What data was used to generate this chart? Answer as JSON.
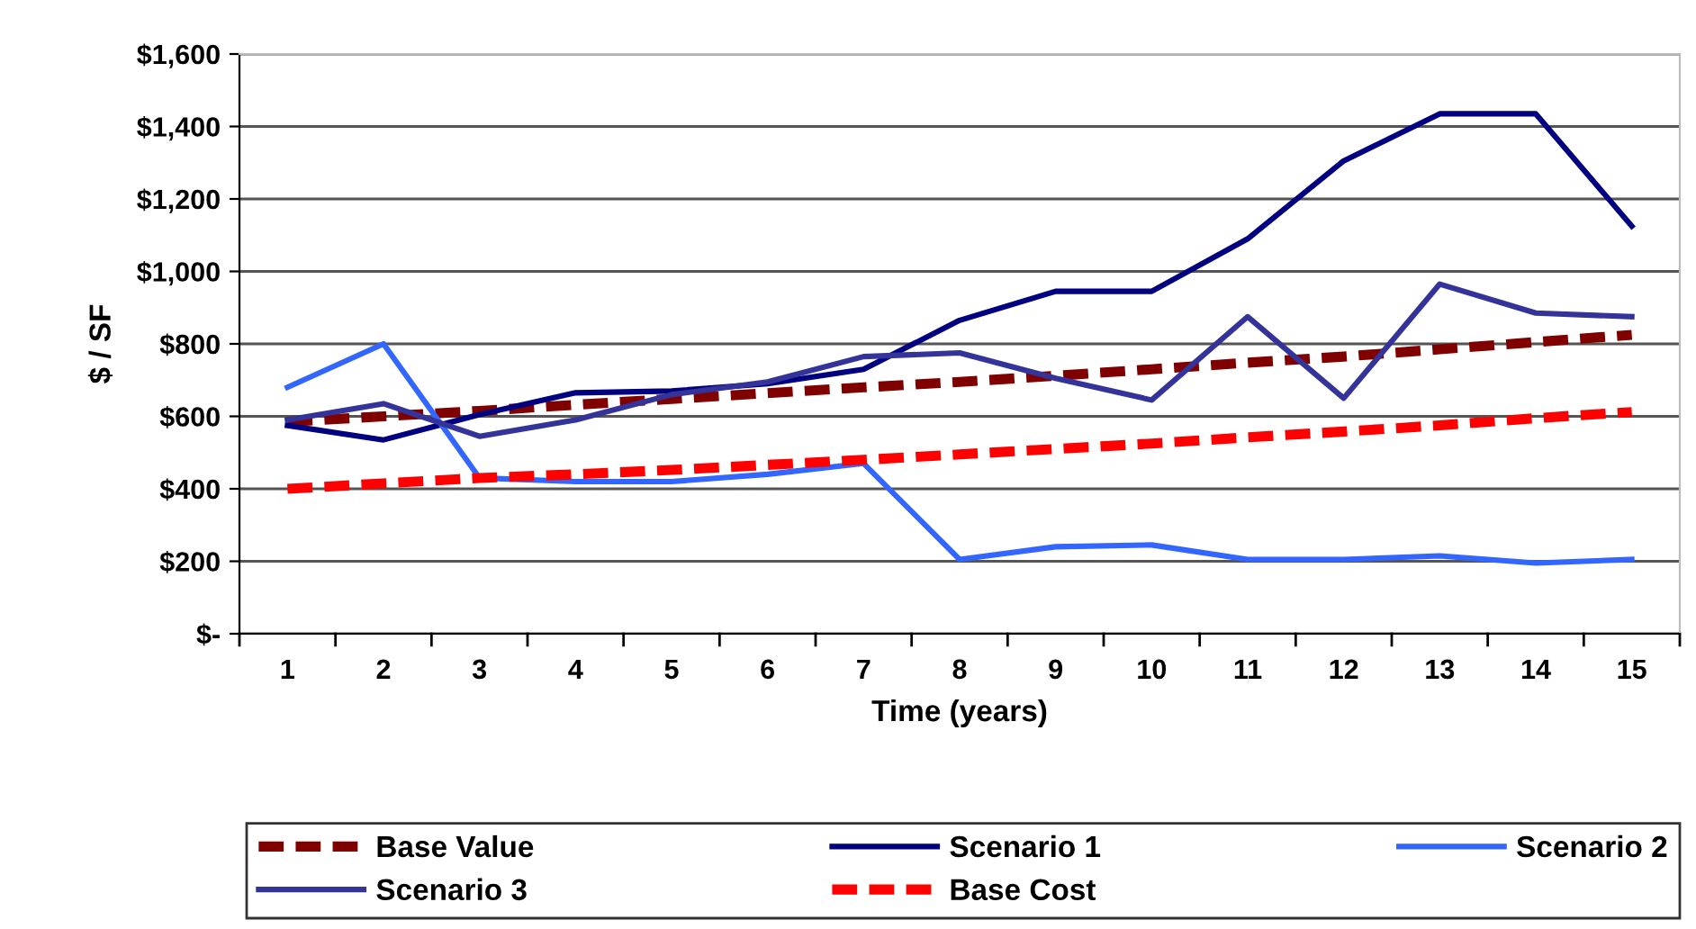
{
  "chart_data": {
    "type": "line",
    "xlabel": "Time (years)",
    "ylabel": "$ / SF",
    "categories": [
      "1",
      "2",
      "3",
      "4",
      "5",
      "6",
      "7",
      "8",
      "9",
      "10",
      "11",
      "12",
      "13",
      "14",
      "15"
    ],
    "series": [
      {
        "name": "Base Value",
        "color": "#800000",
        "line_style": "dashed",
        "values": [
          585,
          600,
          615,
          632,
          648,
          664,
          680,
          695,
          712,
          730,
          748,
          765,
          785,
          805,
          825
        ]
      },
      {
        "name": "Scenario 1",
        "color": "#000080",
        "line_style": "solid",
        "values": [
          575,
          535,
          605,
          665,
          670,
          690,
          730,
          865,
          945,
          945,
          1090,
          1305,
          1435,
          1435,
          1125
        ]
      },
      {
        "name": "Scenario 2",
        "color": "#3366ff",
        "line_style": "solid",
        "values": [
          680,
          800,
          430,
          420,
          420,
          440,
          470,
          205,
          240,
          245,
          205,
          205,
          215,
          195,
          205
        ]
      },
      {
        "name": "Scenario 3",
        "color": "#333399",
        "line_style": "solid",
        "values": [
          590,
          635,
          545,
          590,
          660,
          695,
          765,
          775,
          705,
          645,
          875,
          650,
          965,
          885,
          875
        ]
      },
      {
        "name": "Base Cost",
        "color": "#ff0000",
        "line_style": "dashed",
        "values": [
          400,
          415,
          430,
          440,
          452,
          466,
          480,
          495,
          510,
          525,
          542,
          558,
          575,
          595,
          612
        ]
      }
    ],
    "ylim": [
      0,
      1600
    ],
    "yticks": [
      {
        "value": 0,
        "label": "$-"
      },
      {
        "value": 200,
        "label": "$200"
      },
      {
        "value": 400,
        "label": "$400"
      },
      {
        "value": 600,
        "label": "$600"
      },
      {
        "value": 800,
        "label": "$800"
      },
      {
        "value": 1000,
        "label": "$1,000"
      },
      {
        "value": 1200,
        "label": "$1,200"
      },
      {
        "value": 1400,
        "label": "$1,400"
      },
      {
        "value": 1600,
        "label": "$1,600"
      }
    ],
    "grid": "y",
    "legend": "bottom",
    "marker": "none"
  }
}
